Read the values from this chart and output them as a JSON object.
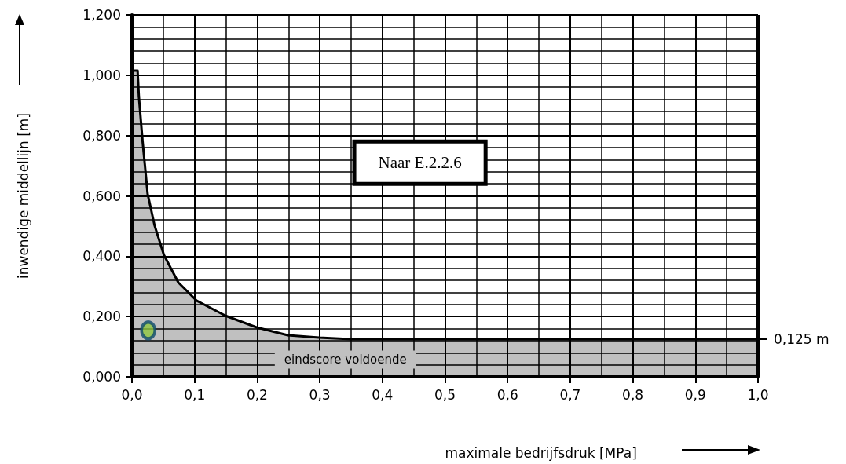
{
  "chart_data": {
    "type": "area",
    "xlabel": "maximale bedrijfsdruk [MPa]",
    "ylabel": "inwendige middellijn [m]",
    "series": [
      {
        "color": "#c0c0c0",
        "x": [
          0,
          0.009,
          0.011,
          0.017,
          0.025,
          0.036,
          0.051,
          0.074,
          0.103,
          0.149,
          0.199,
          0.249,
          0.299,
          0.35,
          0.45,
          1.0
        ],
        "values": [
          1.015,
          1.015,
          0.93,
          0.78,
          0.607,
          0.503,
          0.404,
          0.313,
          0.253,
          0.203,
          0.164,
          0.138,
          0.13,
          0.125,
          0.125,
          0.125
        ]
      },
      {
        "type": "scatter",
        "color": "#8dc63f",
        "x": [
          0.026
        ],
        "values": [
          0.154
        ]
      }
    ],
    "xlim": [
      0,
      1.0
    ],
    "ylim": [
      0,
      1.2
    ],
    "xticks": [
      {
        "value": 0,
        "label": "0,0"
      },
      {
        "value": 0.1,
        "label": "0,1"
      },
      {
        "value": 0.2,
        "label": "0,2"
      },
      {
        "value": 0.3,
        "label": "0,3"
      },
      {
        "value": 0.4,
        "label": "0,4"
      },
      {
        "value": 0.5,
        "label": "0,5"
      },
      {
        "value": 0.6,
        "label": "0,6"
      },
      {
        "value": 0.7,
        "label": "0,7"
      },
      {
        "value": 0.8,
        "label": "0,8"
      },
      {
        "value": 0.9,
        "label": "0,9"
      },
      {
        "value": 1.0,
        "label": "1,0"
      }
    ],
    "yticks": [
      {
        "value": 0,
        "label": "0,000"
      },
      {
        "value": 0.2,
        "label": "0,200"
      },
      {
        "value": 0.4,
        "label": "0,400"
      },
      {
        "value": 0.6,
        "label": "0,600"
      },
      {
        "value": 0.8,
        "label": "0,800"
      },
      {
        "value": 1.0,
        "label": "1,000"
      },
      {
        "value": 1.2,
        "label": "1,200"
      }
    ],
    "ref_lines": [
      {
        "axis": "y",
        "value": 0.125,
        "label": "0,125 m"
      }
    ],
    "annotations": [
      "Naar E.2.2.6",
      "eindscore voldoende"
    ],
    "grid": true
  }
}
